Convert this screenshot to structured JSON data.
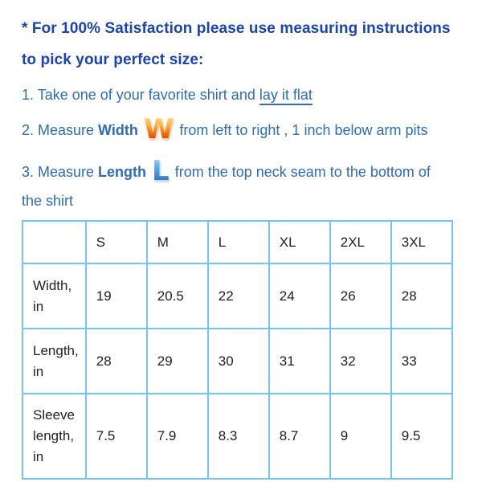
{
  "colors": {
    "heading_blue": "#1a44b3",
    "body_blue": "#2d6db9",
    "table_border": "#73c5f4",
    "table_text": "#222222",
    "w_icon_top": "#ffe793",
    "w_icon_mid": "#ffae38",
    "w_icon_low": "#f05a00",
    "w_icon_bottom": "#bb1e00",
    "l_icon_top": "#a6dcf8",
    "l_icon_mid": "#53a9e4",
    "l_icon_bottom": "#1b62b8"
  },
  "heading": {
    "line1": "* For 100% Satisfaction please use measuring instructions",
    "line2": "to pick your perfect size:"
  },
  "instructions": [
    {
      "text_before": "1. Take one of your favorite shirt and ",
      "underlined_text": "lay it flat"
    },
    {
      "text_before": "2. Measure ",
      "bold_word": "Width",
      "icon_letter": "W",
      "text_after": "from left to right , 1 inch below arm pits"
    },
    {
      "text_before": "3. Measure ",
      "bold_word": "Length",
      "icon_letter": "L",
      "text_after_line1": "from the top neck seam to the bottom of",
      "text_after_line2": "the shirt"
    }
  ],
  "table": {
    "headers": [
      "",
      "S",
      "M",
      "L",
      "XL",
      "2XL",
      "3XL"
    ],
    "rows": [
      {
        "label": "Width, in",
        "values": [
          "19",
          "20.5",
          "22",
          "24",
          "26",
          "28"
        ]
      },
      {
        "label": "Length, in",
        "values": [
          "28",
          "29",
          "30",
          "31",
          "32",
          "33"
        ]
      },
      {
        "label": "Sleeve length, in",
        "values": [
          "7.5",
          "7.9",
          "8.3",
          "8.7",
          "9",
          "9.5"
        ]
      }
    ]
  }
}
